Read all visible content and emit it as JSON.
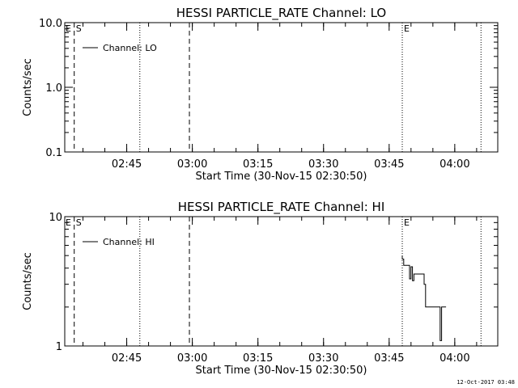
{
  "chart_data": [
    {
      "type": "line",
      "title": "HESSI PARTICLE_RATE Channel: LO",
      "xlabel": "Start Time (30-Nov-15 02:30:50)",
      "ylabel": "Counts/sec",
      "yscale": "log",
      "ylim": [
        0.1,
        10
      ],
      "y_ticks": [
        {
          "v": 0.1,
          "label": "0.1"
        },
        {
          "v": 1,
          "label": "1.0"
        },
        {
          "v": 10,
          "label": "10.0"
        }
      ],
      "xlim": [
        "02:30:50",
        "04:09:50"
      ],
      "x_ticks": [
        {
          "t": "02:45",
          "label": "02:45"
        },
        {
          "t": "03:00",
          "label": "03:00"
        },
        {
          "t": "03:15",
          "label": "03:15"
        },
        {
          "t": "03:30",
          "label": "03:30"
        },
        {
          "t": "03:45",
          "label": "03:45"
        },
        {
          "t": "04:00",
          "label": "04:00"
        }
      ],
      "legend": {
        "label": "Channel: LO",
        "placement": "top-left"
      },
      "vlines": [
        {
          "t": "02:33:00",
          "style": "dashed",
          "label": "S"
        },
        {
          "t": "02:48:00",
          "style": "dotted",
          "label": ""
        },
        {
          "t": "02:59:20",
          "style": "dashed",
          "label": ""
        },
        {
          "t": "03:48:00",
          "style": "dotted",
          "label": "E"
        },
        {
          "t": "04:06:00",
          "style": "dotted",
          "label": ""
        }
      ],
      "corner_label": "E",
      "series": [
        {
          "name": "Channel: LO",
          "points": []
        }
      ]
    },
    {
      "type": "line",
      "title": "HESSI PARTICLE_RATE Channel: HI",
      "xlabel": "Start Time (30-Nov-15 02:30:50)",
      "ylabel": "Counts/sec",
      "yscale": "log",
      "ylim": [
        1,
        10
      ],
      "y_ticks": [
        {
          "v": 1,
          "label": "1"
        },
        {
          "v": 10,
          "label": "10"
        }
      ],
      "xlim": [
        "02:30:50",
        "04:09:50"
      ],
      "x_ticks": [
        {
          "t": "02:45",
          "label": "02:45"
        },
        {
          "t": "03:00",
          "label": "03:00"
        },
        {
          "t": "03:15",
          "label": "03:15"
        },
        {
          "t": "03:30",
          "label": "03:30"
        },
        {
          "t": "03:45",
          "label": "03:45"
        },
        {
          "t": "04:00",
          "label": "04:00"
        }
      ],
      "legend": {
        "label": "Channel: HI",
        "placement": "top-left"
      },
      "vlines": [
        {
          "t": "02:33:00",
          "style": "dashed",
          "label": "S"
        },
        {
          "t": "02:48:00",
          "style": "dotted",
          "label": ""
        },
        {
          "t": "02:59:20",
          "style": "dashed",
          "label": ""
        },
        {
          "t": "03:48:00",
          "style": "dotted",
          "label": "E"
        },
        {
          "t": "04:06:00",
          "style": "dotted",
          "label": ""
        }
      ],
      "corner_label": "E",
      "series": [
        {
          "name": "Channel: HI",
          "points": [
            [
              "03:48:00",
              5.0
            ],
            [
              "03:48:00",
              4.7
            ],
            [
              "03:48:20",
              4.7
            ],
            [
              "03:48:20",
              4.2
            ],
            [
              "03:49:40",
              4.2
            ],
            [
              "03:49:40",
              3.3
            ],
            [
              "03:50:00",
              3.3
            ],
            [
              "03:50:00",
              4.1
            ],
            [
              "03:50:20",
              4.1
            ],
            [
              "03:50:20",
              3.2
            ],
            [
              "03:50:40",
              3.2
            ],
            [
              "03:50:40",
              3.6
            ],
            [
              "03:51:00",
              3.6
            ],
            [
              "03:53:00",
              3.6
            ],
            [
              "03:53:00",
              3.0
            ],
            [
              "03:53:20",
              3.0
            ],
            [
              "03:53:20",
              2.0
            ],
            [
              "03:56:40",
              2.0
            ],
            [
              "03:56:40",
              1.1
            ],
            [
              "03:57:00",
              1.1
            ],
            [
              "03:57:00",
              2.0
            ],
            [
              "03:58:00",
              2.0
            ]
          ]
        }
      ]
    }
  ],
  "footer_text": "12-Oct-2017 03:48"
}
